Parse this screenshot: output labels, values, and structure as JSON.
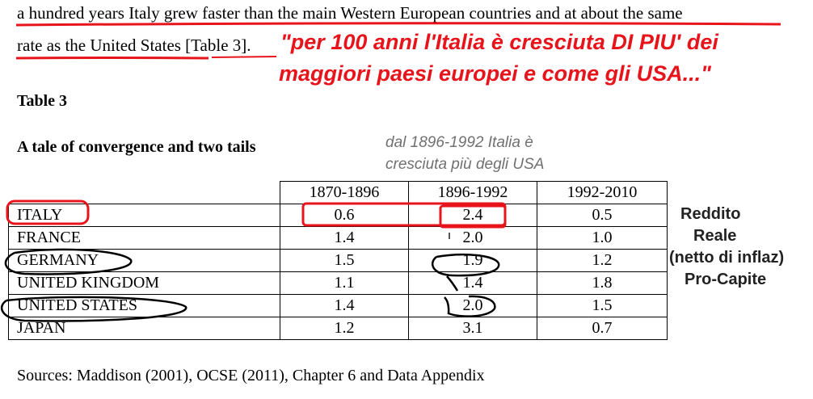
{
  "paragraph": {
    "line1": "a hundred years Italy grew faster than the main Western European countries and at about the same",
    "line2": "rate as the United States [Table 3]."
  },
  "annotation_quote": {
    "line1": "\"per 100 anni l'Italia è cresciuta DI PIU' dei",
    "line2": "maggiori paesi europei e come gli USA...\"",
    "color": "#e8141b"
  },
  "table_label": "Table 3",
  "table_title": "A tale of convergence and two tails",
  "annotation_note": {
    "line1": "dal 1896-1992 Italia è",
    "line2": "cresciuta più degli USA"
  },
  "table": {
    "columns": [
      "1870-1896",
      "1896-1992",
      "1992-2010"
    ],
    "rows": [
      {
        "country": "ITALY",
        "values": [
          "0.6",
          "2.4",
          "0.5"
        ]
      },
      {
        "country": "FRANCE",
        "values": [
          "1.4",
          "2.0",
          "1.0"
        ]
      },
      {
        "country": "GERMANY",
        "values": [
          "1.5",
          "1.9",
          "1.2"
        ]
      },
      {
        "country": "UNITED KINGDOM",
        "values": [
          "1.1",
          "1.4",
          "1.8"
        ]
      },
      {
        "country": "UNITED STATES",
        "values": [
          "1.4",
          "2.0",
          "1.5"
        ]
      },
      {
        "country": "JAPAN",
        "values": [
          "1.2",
          "3.1",
          "0.7"
        ]
      }
    ]
  },
  "side_note": [
    "Reddito",
    "Reale",
    "(netto di inflaz)",
    "Pro-Capite"
  ],
  "sources": "Sources: Maddison (2001), OCSE (2011), Chapter 6 and Data Appendix",
  "markup_colors": {
    "red": "#e8141b",
    "black": "#000000"
  }
}
